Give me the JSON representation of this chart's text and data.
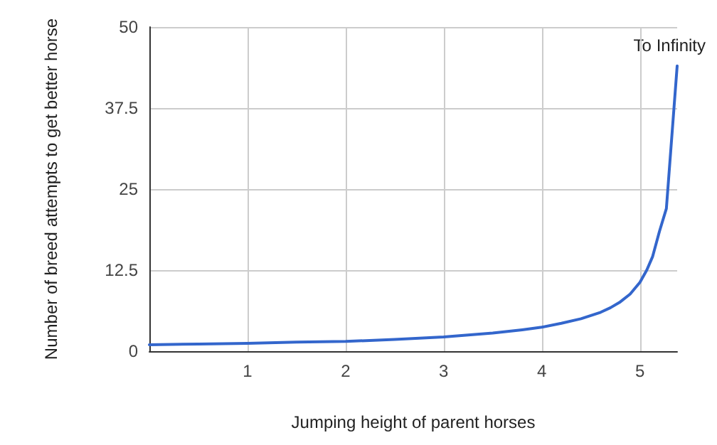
{
  "chart_data": {
    "type": "line",
    "xlabel": "Jumping height of parent horses",
    "ylabel": "Number of breed attempts to get better horse",
    "x": [
      0,
      0.5,
      1,
      1.5,
      2,
      2.5,
      3,
      3.5,
      3.8,
      4,
      4.2,
      4.4,
      4.6,
      4.7,
      4.8,
      4.9,
      5,
      5.07,
      5.13,
      5.2,
      5.27,
      5.38
    ],
    "series": [
      {
        "color": "#3366cc",
        "values": [
          1.0,
          1.1,
          1.2,
          1.4,
          1.5,
          1.8,
          2.2,
          2.8,
          3.3,
          3.7,
          4.3,
          5.0,
          6.0,
          6.7,
          7.6,
          8.8,
          10.6,
          12.5,
          14.6,
          18.5,
          22,
          44
        ]
      }
    ],
    "annotations": [
      "To Infinity"
    ],
    "xlim": [
      0,
      5.38
    ],
    "xticks": [
      1,
      2,
      3,
      4,
      5
    ],
    "ylim": [
      0,
      50
    ],
    "yticks": [
      0,
      12.5,
      25,
      37.5,
      50
    ],
    "grid": true,
    "marker": "none",
    "line_style": "solid"
  }
}
